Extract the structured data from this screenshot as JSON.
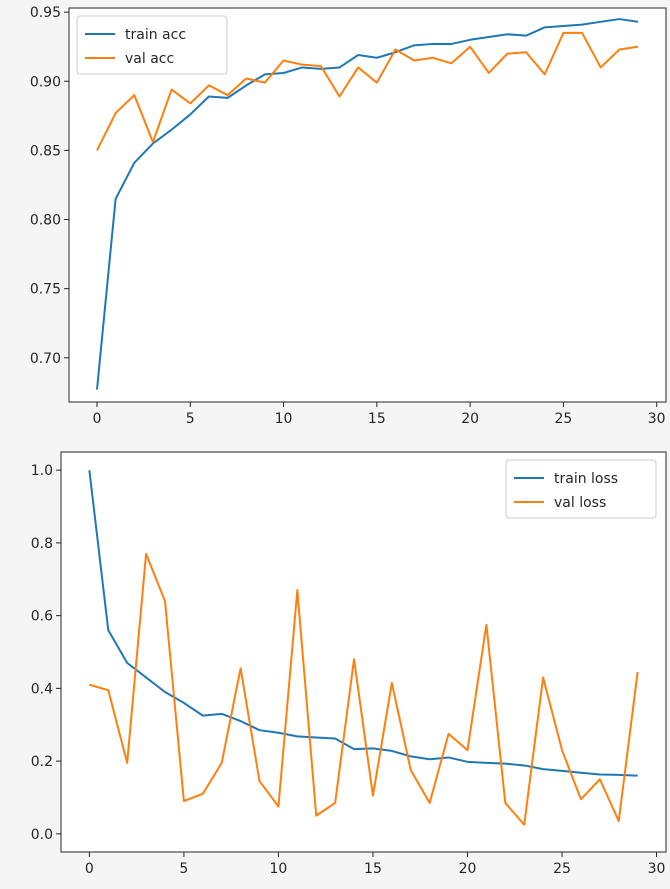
{
  "colors": {
    "train": "#1f77b4",
    "val": "#ff7f0e"
  },
  "chart_data": [
    {
      "type": "line",
      "legend_position": "top-left",
      "grid": false,
      "xlim": [
        -1.5,
        30.5
      ],
      "ylim": [
        0.668,
        0.953
      ],
      "xticks": [
        0,
        5,
        10,
        15,
        20,
        25,
        30
      ],
      "yticks": [
        0.7,
        0.75,
        0.8,
        0.85,
        0.9,
        0.95
      ],
      "ytick_labels": [
        "0.70",
        "0.75",
        "0.80",
        "0.85",
        "0.90",
        "0.95"
      ],
      "x": [
        0,
        1,
        2,
        3,
        4,
        5,
        6,
        7,
        8,
        9,
        10,
        11,
        12,
        13,
        14,
        15,
        16,
        17,
        18,
        19,
        20,
        21,
        22,
        23,
        24,
        25,
        26,
        27,
        28,
        29
      ],
      "series": [
        {
          "name": "train acc",
          "color": "#1f77b4",
          "values": [
            0.677,
            0.815,
            0.841,
            0.855,
            0.865,
            0.876,
            0.889,
            0.888,
            0.897,
            0.905,
            0.906,
            0.91,
            0.909,
            0.91,
            0.919,
            0.917,
            0.921,
            0.926,
            0.927,
            0.927,
            0.93,
            0.932,
            0.934,
            0.933,
            0.939,
            0.94,
            0.941,
            0.943,
            0.945,
            0.943
          ]
        },
        {
          "name": "val acc",
          "color": "#ff7f0e",
          "values": [
            0.85,
            0.877,
            0.89,
            0.856,
            0.894,
            0.884,
            0.897,
            0.89,
            0.902,
            0.899,
            0.915,
            0.912,
            0.911,
            0.889,
            0.91,
            0.899,
            0.923,
            0.915,
            0.917,
            0.913,
            0.925,
            0.906,
            0.92,
            0.921,
            0.905,
            0.935,
            0.935,
            0.91,
            0.923,
            0.925
          ]
        }
      ]
    },
    {
      "type": "line",
      "legend_position": "top-right",
      "grid": false,
      "xlim": [
        -1.5,
        30.5
      ],
      "ylim": [
        -0.05,
        1.05
      ],
      "xticks": [
        0,
        5,
        10,
        15,
        20,
        25,
        30
      ],
      "yticks": [
        0.0,
        0.2,
        0.4,
        0.6,
        0.8,
        1.0
      ],
      "ytick_labels": [
        "0.0",
        "0.2",
        "0.4",
        "0.6",
        "0.8",
        "1.0"
      ],
      "x": [
        0,
        1,
        2,
        3,
        4,
        5,
        6,
        7,
        8,
        9,
        10,
        11,
        12,
        13,
        14,
        15,
        16,
        17,
        18,
        19,
        20,
        21,
        22,
        23,
        24,
        25,
        26,
        27,
        28,
        29
      ],
      "series": [
        {
          "name": "train loss",
          "color": "#1f77b4",
          "values": [
            1.0,
            0.56,
            0.47,
            0.43,
            0.39,
            0.36,
            0.325,
            0.33,
            0.31,
            0.285,
            0.278,
            0.268,
            0.265,
            0.262,
            0.233,
            0.235,
            0.228,
            0.213,
            0.205,
            0.21,
            0.198,
            0.195,
            0.193,
            0.188,
            0.178,
            0.173,
            0.168,
            0.163,
            0.162,
            0.16
          ]
        },
        {
          "name": "val loss",
          "color": "#ff7f0e",
          "values": [
            0.41,
            0.395,
            0.195,
            0.77,
            0.64,
            0.09,
            0.11,
            0.195,
            0.455,
            0.145,
            0.075,
            0.67,
            0.05,
            0.085,
            0.48,
            0.105,
            0.415,
            0.175,
            0.085,
            0.275,
            0.23,
            0.575,
            0.085,
            0.025,
            0.43,
            0.23,
            0.095,
            0.15,
            0.035,
            0.445
          ]
        }
      ]
    }
  ]
}
